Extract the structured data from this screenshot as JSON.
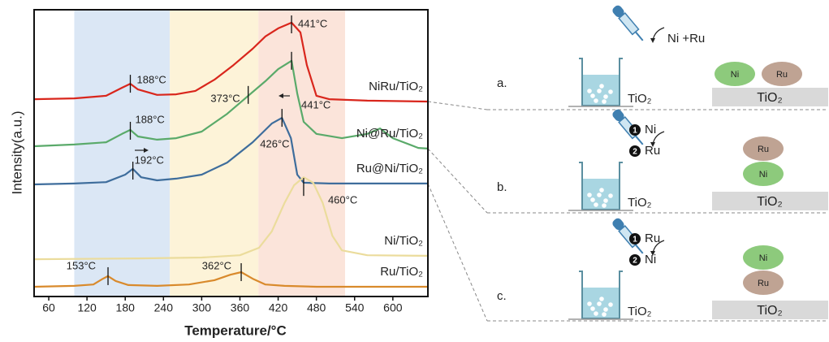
{
  "chart_data": {
    "type": "line",
    "xlabel": "Temperature/°C",
    "ylabel": "Intensity(a.u.)",
    "xlim": [
      37,
      655
    ],
    "ylim": [
      0,
      100
    ],
    "xticks": [
      60,
      120,
      180,
      240,
      300,
      360,
      420,
      480,
      540,
      600
    ],
    "regions": [
      {
        "from": 100,
        "to": 250,
        "color": "#dbe7f5"
      },
      {
        "from": 250,
        "to": 389,
        "color": "#fdf3d8"
      },
      {
        "from": 389,
        "to": 525,
        "color": "#fbe4da"
      }
    ],
    "series": [
      {
        "name": "NiRu/TiO₂",
        "color": "#d9261c",
        "x": [
          37,
          100,
          150,
          175,
          188,
          200,
          230,
          260,
          290,
          320,
          350,
          380,
          400,
          420,
          441,
          455,
          465,
          480,
          500,
          560,
          655
        ],
        "values": [
          68.8,
          69.1,
          70.0,
          72.8,
          74.2,
          72.2,
          70.3,
          70.5,
          71.7,
          75.6,
          80.7,
          86.4,
          90.7,
          93.5,
          95.5,
          92.1,
          80.7,
          70.0,
          68.8,
          68.3,
          68.0
        ]
      },
      {
        "name": "Ni@Ru/TiO₂",
        "color": "#5aaa6a",
        "x": [
          37,
          100,
          150,
          175,
          188,
          200,
          230,
          260,
          300,
          340,
          373,
          400,
          420,
          441,
          450,
          460,
          480,
          520,
          560,
          580,
          600,
          640,
          655
        ],
        "values": [
          52.4,
          53.0,
          53.8,
          56.7,
          58.1,
          55.8,
          54.7,
          55.2,
          57.5,
          63.7,
          70.0,
          75.1,
          79.3,
          82.2,
          70.8,
          60.9,
          56.7,
          55.2,
          56.7,
          58.6,
          55.2,
          51.8,
          51.6
        ]
      },
      {
        "name": "Ru@Ni/TiO₂",
        "color": "#3e6d9c",
        "x": [
          37,
          100,
          150,
          180,
          192,
          205,
          230,
          260,
          300,
          340,
          380,
          410,
          426,
          440,
          450,
          460,
          500,
          655
        ],
        "values": [
          39.1,
          39.4,
          39.9,
          42.5,
          44.5,
          41.6,
          40.5,
          41.1,
          42.5,
          46.7,
          53.8,
          60.3,
          62.3,
          55.2,
          42.5,
          39.7,
          39.4,
          39.4
        ]
      },
      {
        "name": "Ni/TiO₂",
        "color": "#ebdc9c",
        "x": [
          37,
          200,
          300,
          360,
          390,
          410,
          430,
          445,
          460,
          475,
          490,
          505,
          520,
          560,
          655
        ],
        "values": [
          13.0,
          13.3,
          13.6,
          14.4,
          17.0,
          22.7,
          32.6,
          38.8,
          41.6,
          39.7,
          32.6,
          21.2,
          16.1,
          14.4,
          14.2
        ]
      },
      {
        "name": "Ru/TiO₂",
        "color": "#d98a2c",
        "x": [
          37,
          100,
          130,
          145,
          153,
          165,
          185,
          230,
          280,
          320,
          345,
          362,
          380,
          400,
          430,
          480,
          655
        ],
        "values": [
          3.4,
          3.7,
          4.2,
          6.2,
          7.1,
          5.4,
          4.0,
          3.7,
          4.2,
          5.7,
          7.6,
          8.5,
          6.2,
          4.2,
          3.7,
          3.4,
          3.4
        ]
      }
    ],
    "annotations": [
      {
        "text": "441°C",
        "x": 441,
        "y": 94.9
      },
      {
        "text": "188°C",
        "x": 188,
        "y": 74.2
      },
      {
        "text": "373°C",
        "x": 373,
        "y": 70.3
      },
      {
        "text": "441°C",
        "x": 441,
        "y": 82.2
      },
      {
        "text": "188°C",
        "x": 188,
        "y": 57.8
      },
      {
        "text": "426°C",
        "x": 426,
        "y": 62.3
      },
      {
        "text": "192°C",
        "x": 192,
        "y": 43.9
      },
      {
        "text": "460°C",
        "x": 460,
        "y": 38.2
      },
      {
        "text": "153°C",
        "x": 153,
        "y": 7.1
      },
      {
        "text": "362°C",
        "x": 362,
        "y": 8.5
      }
    ]
  },
  "schematic": {
    "rows": [
      {
        "label": "a.",
        "steps": [
          {
            "text": "Ni +Ru"
          }
        ],
        "beaker": "TiO₂",
        "particles": [
          "Ni",
          "Ru"
        ],
        "support": "TiO₂"
      },
      {
        "label": "b.",
        "steps": [
          {
            "n": "1",
            "text": "Ni"
          },
          {
            "n": "2",
            "text": "Ru"
          }
        ],
        "beaker": "TiO₂",
        "particles": [
          "Ru",
          "Ni"
        ],
        "support": "TiO₂"
      },
      {
        "label": "c.",
        "steps": [
          {
            "n": "1",
            "text": "Ru"
          },
          {
            "n": "2",
            "text": "Ni"
          }
        ],
        "beaker": "TiO₂",
        "particles": [
          "Ni",
          "Ru"
        ],
        "support": "TiO₂"
      }
    ]
  }
}
